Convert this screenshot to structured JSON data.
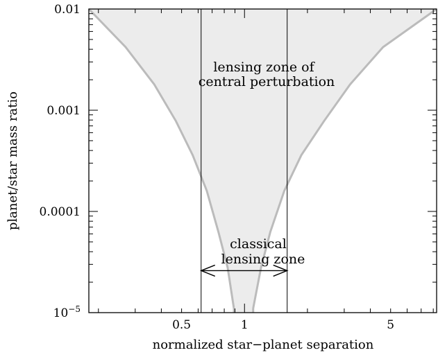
{
  "chart_data": {
    "type": "area",
    "xlabel": "normalized star−planet separation",
    "ylabel": "planet/star mass ratio",
    "x_scale": "log",
    "y_scale": "log",
    "xlim": [
      0.18,
      8.3
    ],
    "ylim": [
      1e-05,
      0.01
    ],
    "x_ticks": [
      {
        "value": 0.5,
        "label": "0.5"
      },
      {
        "value": 1,
        "label": "1"
      },
      {
        "value": 5,
        "label": "5"
      }
    ],
    "y_ticks": [
      {
        "value": 0.01,
        "label": "0.01"
      },
      {
        "value": 0.001,
        "label": "0.001"
      },
      {
        "value": 0.0001,
        "label": "0.0001"
      },
      {
        "value": 1e-05,
        "label": "10",
        "exponent": "−5"
      }
    ],
    "grid": false,
    "legend": "none",
    "left_boundary": [
      [
        0.18,
        0.01
      ],
      [
        0.27,
        0.0042
      ],
      [
        0.37,
        0.0018
      ],
      [
        0.47,
        0.00078
      ],
      [
        0.565,
        0.00036
      ],
      [
        0.66,
        0.00016
      ],
      [
        0.75,
        6.3e-05
      ],
      [
        0.83,
        2.8e-05
      ],
      [
        0.89,
        1.1e-05
      ]
    ],
    "right_boundary": [
      [
        1.1,
        1.1e-05
      ],
      [
        1.2,
        2.8e-05
      ],
      [
        1.33,
        6.3e-05
      ],
      [
        1.55,
        0.00016
      ],
      [
        1.87,
        0.00036
      ],
      [
        2.4,
        0.00078
      ],
      [
        3.2,
        0.0018
      ],
      [
        4.6,
        0.0042
      ],
      [
        8.3,
        0.01
      ]
    ],
    "vertical_lines": [
      0.62,
      1.6
    ],
    "classical_zone": {
      "from": 0.62,
      "to": 1.6,
      "y": 2.6e-05
    },
    "annotations": {
      "perturbation_zone": [
        "lensing zone of",
        "central perturbation"
      ],
      "classical_zone": [
        "classical",
        "lensing zone"
      ]
    },
    "colors": {
      "region": "#ececec",
      "boundary": "#bbbbbb",
      "lines": "#000000"
    }
  }
}
